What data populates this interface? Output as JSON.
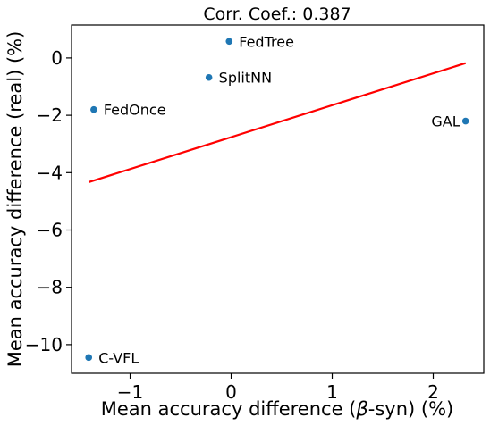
{
  "chart_data": {
    "type": "scatter",
    "title": "Corr. Coef.: 0.387",
    "xlabel": "Mean accuracy difference (β-syn) (%)",
    "xlabel_parts": [
      "Mean accuracy difference (",
      "β",
      "-syn) (%)"
    ],
    "ylabel": "Mean accuracy difference (real) (%)",
    "xlim": [
      -1.58,
      2.5
    ],
    "ylim": [
      -11.0,
      1.15
    ],
    "xticks": [
      {
        "value": -1,
        "label": "−1"
      },
      {
        "value": 0,
        "label": "0"
      },
      {
        "value": 1,
        "label": "1"
      },
      {
        "value": 2,
        "label": "2"
      }
    ],
    "yticks": [
      {
        "value": 0,
        "label": "0"
      },
      {
        "value": -2,
        "label": "−2"
      },
      {
        "value": -4,
        "label": "−4"
      },
      {
        "value": -6,
        "label": "−6"
      },
      {
        "value": -8,
        "label": "−8"
      },
      {
        "value": -10,
        "label": "−10"
      }
    ],
    "grid": false,
    "point_color": "#1f77b4",
    "line_color": "#ff0000",
    "points": [
      {
        "name": "FedTree",
        "x": -0.02,
        "y": 0.58,
        "label_side": "right"
      },
      {
        "name": "SplitNN",
        "x": -0.22,
        "y": -0.68,
        "label_side": "right"
      },
      {
        "name": "FedOnce",
        "x": -1.36,
        "y": -1.8,
        "label_side": "right"
      },
      {
        "name": "GAL",
        "x": 2.32,
        "y": -2.2,
        "label_side": "left"
      },
      {
        "name": "C-VFL",
        "x": -1.41,
        "y": -10.45,
        "label_side": "right"
      }
    ],
    "fit_line": {
      "x": [
        -1.41,
        2.32
      ],
      "y": [
        -4.33,
        -0.18
      ]
    }
  }
}
